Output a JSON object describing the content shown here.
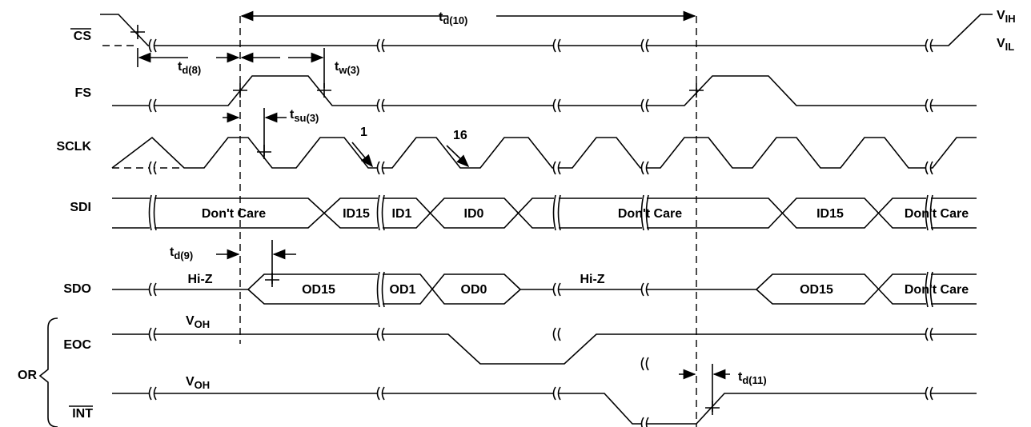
{
  "signals": {
    "cs": "CS",
    "fs": "FS",
    "sclk": "SCLK",
    "sdi": "SDI",
    "sdo": "SDO",
    "eoc": "EOC",
    "int": "INT",
    "or": "OR"
  },
  "levels": {
    "vih": {
      "t": "V",
      "sub": "IH"
    },
    "vil": {
      "t": "V",
      "sub": "IL"
    },
    "eoc_voh": {
      "t": "V",
      "sub": "OH"
    },
    "int_voh": {
      "t": "V",
      "sub": "OH"
    }
  },
  "timing": {
    "td10": {
      "t": "t",
      "sub": "d(10)"
    },
    "td8": {
      "t": "t",
      "sub": "d(8)"
    },
    "tw3": {
      "t": "t",
      "sub": "w(3)"
    },
    "tsu3": {
      "t": "t",
      "sub": "su(3)"
    },
    "td9": {
      "t": "t",
      "sub": "d(9)"
    },
    "td11": {
      "t": "t",
      "sub": "d(11)"
    }
  },
  "clock_labels": [
    "1",
    "16"
  ],
  "sdi": [
    "Don't Care",
    "ID15",
    "ID1",
    "ID0",
    "Don't Care",
    "ID15",
    "Don't Care"
  ],
  "sdo": [
    "Hi-Z",
    "OD15",
    "OD1",
    "OD0",
    "Hi-Z",
    "OD15",
    "Don't Care"
  ]
}
